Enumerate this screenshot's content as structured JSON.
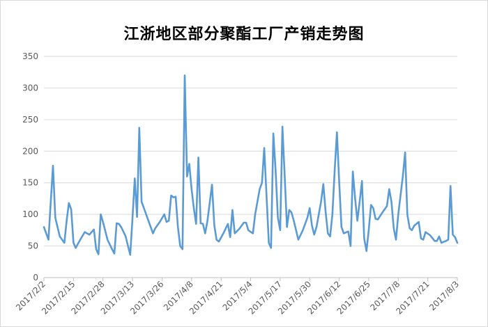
{
  "chart_data": {
    "type": "line",
    "title": "江浙地区部分聚酯工厂产销走势图",
    "xlabel": "",
    "ylabel": "",
    "ylim": [
      0,
      350
    ],
    "yticks": [
      0,
      50,
      100,
      150,
      200,
      250,
      300,
      350
    ],
    "grid": true,
    "legend": "none",
    "line_color": "#5b9bd5",
    "x_tick_labels": [
      "2017/2/2",
      "2017/2/15",
      "2017/2/28",
      "2017/3/13",
      "2017/3/26",
      "2017/4/8",
      "2017/4/21",
      "2017/5/4",
      "2017/5/17",
      "2017/5/30",
      "2017/6/12",
      "2017/6/25",
      "2017/7/8",
      "2017/7/21",
      "2017/8/3"
    ],
    "x_start": "2017/2/2",
    "x_end": "2017/8/3",
    "series": [
      {
        "points": [
          [
            "2017/2/2",
            80
          ],
          [
            "2017/2/4",
            60
          ],
          [
            "2017/2/5",
            120
          ],
          [
            "2017/2/6",
            177
          ],
          [
            "2017/2/7",
            95
          ],
          [
            "2017/2/8",
            80
          ],
          [
            "2017/2/9",
            65
          ],
          [
            "2017/2/11",
            55
          ],
          [
            "2017/2/12",
            90
          ],
          [
            "2017/2/13",
            118
          ],
          [
            "2017/2/14",
            108
          ],
          [
            "2017/2/15",
            55
          ],
          [
            "2017/2/16",
            47
          ],
          [
            "2017/2/18",
            60
          ],
          [
            "2/20",
            72
          ],
          [
            "2017/2/22",
            68
          ],
          [
            "2017/2/24",
            76
          ],
          [
            "2017/2/25",
            45
          ],
          [
            "2017/2/26",
            37
          ],
          [
            "2017/2/27",
            100
          ],
          [
            "2017/2/28",
            88
          ],
          [
            "2017/3/1",
            74
          ],
          [
            "2017/3/2",
            60
          ],
          [
            "2017/3/4",
            45
          ],
          [
            "2017/3/5",
            38
          ],
          [
            "2017/3/6",
            86
          ],
          [
            "2017/3/7",
            85
          ],
          [
            "2017/3/8",
            80
          ],
          [
            "2017/3/10",
            65
          ],
          [
            "2017/3/11",
            50
          ],
          [
            "2017/3/12",
            36
          ],
          [
            "2017/3/13",
            95
          ],
          [
            "2017/3/14",
            157
          ],
          [
            "2017/3/15",
            96
          ],
          [
            "2017/3/16",
            237
          ],
          [
            "2017/3/17",
            120
          ],
          [
            "2017/3/18",
            110
          ],
          [
            "2017/3/20",
            90
          ],
          [
            "2017/3/22",
            70
          ],
          [
            "2017/3/23",
            78
          ],
          [
            "2017/3/25",
            88
          ],
          [
            "2017/3/27",
            100
          ],
          [
            "2017/3/28",
            88
          ],
          [
            "2017/3/29",
            90
          ],
          [
            "2017/3/30",
            130
          ],
          [
            "2017/3/31",
            127
          ],
          [
            "2017/4/1",
            128
          ],
          [
            "2017/4/2",
            80
          ],
          [
            "2017/4/3",
            50
          ],
          [
            "2017/4/4",
            45
          ],
          [
            "2017/4/5",
            320
          ],
          [
            "2017/4/6",
            160
          ],
          [
            "2017/4/7",
            180
          ],
          [
            "2017/4/8",
            140
          ],
          [
            "2017/4/9",
            110
          ],
          [
            "2017/4/10",
            85
          ],
          [
            "2017/4/11",
            190
          ],
          [
            "2017/4/12",
            86
          ],
          [
            "2017/4/13",
            85
          ],
          [
            "2017/4/14",
            70
          ],
          [
            "2017/4/15",
            90
          ],
          [
            "2017/4/17",
            147
          ],
          [
            "2017/4/18",
            83
          ],
          [
            "2017/4/19",
            60
          ],
          [
            "2017/4/20",
            57
          ],
          [
            "2017/4/22",
            70
          ],
          [
            "2017/4/24",
            85
          ],
          [
            "2017/4/25",
            64
          ],
          [
            "2017/4/26",
            107
          ],
          [
            "2017/4/27",
            70
          ],
          [
            "2017/4/29",
            77
          ],
          [
            "2017/5/1",
            87
          ],
          [
            "2017/5/2",
            87
          ],
          [
            "2017/5/3",
            75
          ],
          [
            "2017/5/5",
            70
          ],
          [
            "2017/5/6",
            100
          ],
          [
            "2017/5/8",
            140
          ],
          [
            "2017/5/9",
            150
          ],
          [
            "2017/5/10",
            205
          ],
          [
            "2017/5/11",
            130
          ],
          [
            "2017/5/12",
            55
          ],
          [
            "2017/5/13",
            47
          ],
          [
            "2017/5/14",
            228
          ],
          [
            "2017/5/15",
            170
          ],
          [
            "2017/5/16",
            95
          ],
          [
            "2017/5/17",
            75
          ],
          [
            "2017/5/18",
            239
          ],
          [
            "2017/5/19",
            160
          ],
          [
            "2017/5/20",
            80
          ],
          [
            "2017/5/21",
            107
          ],
          [
            "2017/5/22",
            103
          ],
          [
            "2017/5/23",
            90
          ],
          [
            "2017/5/24",
            75
          ],
          [
            "2017/5/25",
            60
          ],
          [
            "2017/5/27",
            75
          ],
          [
            "2017/5/29",
            95
          ],
          [
            "2017/5/30",
            110
          ],
          [
            "2017/5/31",
            82
          ],
          [
            "2017/6/1",
            68
          ],
          [
            "2017/6/2",
            80
          ],
          [
            "2017/6/4",
            120
          ],
          [
            "2017/6/5",
            148
          ],
          [
            "2017/6/6",
            105
          ],
          [
            "2017/6/7",
            70
          ],
          [
            "2017/6/8",
            65
          ],
          [
            "2017/6/9",
            100
          ],
          [
            "2017/6/10",
            170
          ],
          [
            "2017/6/11",
            230
          ],
          [
            "2017/6/12",
            150
          ],
          [
            "2017/6/13",
            80
          ],
          [
            "2017/6/14",
            70
          ],
          [
            "2017/6/16",
            73
          ],
          [
            "2017/6/17",
            50
          ],
          [
            "2017/6/18",
            168
          ],
          [
            "2017/6/19",
            125
          ],
          [
            "2017/6/20",
            90
          ],
          [
            "2017/6/21",
            120
          ],
          [
            "2017/6/22",
            153
          ],
          [
            "2017/6/23",
            62
          ],
          [
            "2017/6/24",
            42
          ],
          [
            "2017/6/25",
            75
          ],
          [
            "2017/6/26",
            115
          ],
          [
            "2017/6/27",
            110
          ],
          [
            "2017/6/28",
            93
          ],
          [
            "2017/6/29",
            92
          ],
          [
            "2017/7/1",
            103
          ],
          [
            "2017/7/3",
            113
          ],
          [
            "2017/7/4",
            140
          ],
          [
            "2017/7/5",
            120
          ],
          [
            "2017/7/6",
            78
          ],
          [
            "2017/7/7",
            60
          ],
          [
            "2017/7/8",
            100
          ],
          [
            "2017/7/10",
            160
          ],
          [
            "2017/7/11",
            198
          ],
          [
            "2017/7/12",
            100
          ],
          [
            "2017/7/13",
            78
          ],
          [
            "2017/7/14",
            75
          ],
          [
            "2017/7/15",
            82
          ],
          [
            "2017/7/17",
            88
          ],
          [
            "2017/7/18",
            62
          ],
          [
            "2017/7/19",
            60
          ],
          [
            "2017/7/20",
            72
          ],
          [
            "2017/7/22",
            67
          ],
          [
            "2017/7/24",
            58
          ],
          [
            "2017/7/25",
            58
          ],
          [
            "2017/7/26",
            65
          ],
          [
            "2017/7/27",
            55
          ],
          [
            "2017/7/29",
            58
          ],
          [
            "2017/7/30",
            60
          ],
          [
            "2017/7/31",
            145
          ],
          [
            "2017/8/1",
            68
          ],
          [
            "2017/8/2",
            64
          ],
          [
            "2017/8/3",
            55
          ]
        ]
      }
    ]
  }
}
